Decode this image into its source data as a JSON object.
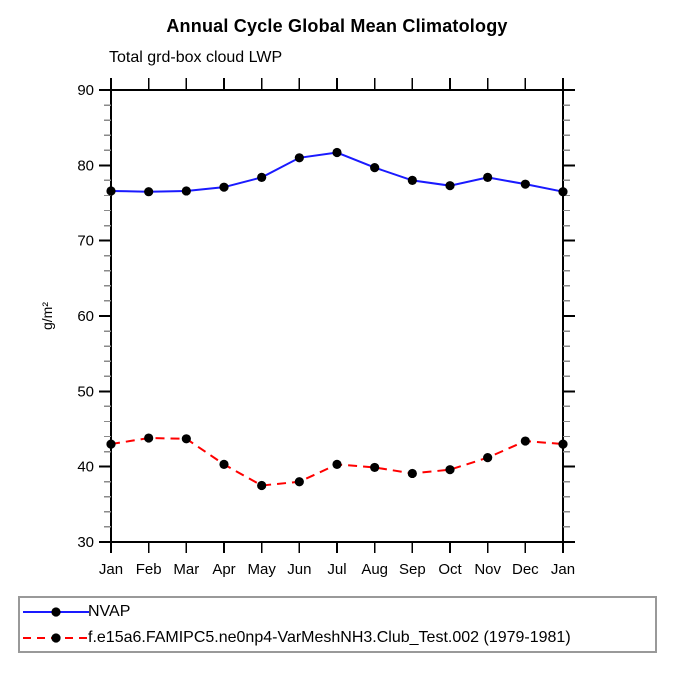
{
  "title": "Annual Cycle Global Mean Climatology",
  "subtitle": "Total grd-box cloud LWP",
  "ylabel": "g/m²",
  "chart_data": {
    "type": "line",
    "categories": [
      "Jan",
      "Feb",
      "Mar",
      "Apr",
      "May",
      "Jun",
      "Jul",
      "Aug",
      "Sep",
      "Oct",
      "Nov",
      "Dec",
      "Jan"
    ],
    "series": [
      {
        "name": "NVAP",
        "color": "#1a1aff",
        "style": "solid",
        "marker": "circle",
        "values": [
          76.6,
          76.5,
          76.6,
          77.1,
          78.4,
          81.0,
          81.7,
          79.7,
          78.0,
          77.3,
          78.4,
          77.5,
          76.5
        ]
      },
      {
        "name": "f.e15a6.FAMIPC5.ne0np4-VarMeshNH3.Club_Test.002 (1979-1981)",
        "color": "#ff0000",
        "style": "dashed",
        "marker": "circle",
        "values": [
          43.0,
          43.8,
          43.7,
          40.3,
          37.5,
          38.0,
          40.3,
          39.9,
          39.1,
          39.6,
          41.2,
          43.4,
          43.0
        ]
      }
    ],
    "title": "Annual Cycle Global Mean Climatology",
    "xlabel": "",
    "ylabel": "g/m²",
    "ylim": [
      30,
      90
    ],
    "ytick_major": [
      30,
      40,
      50,
      60,
      70,
      80,
      90
    ],
    "ytick_minor_step": 2,
    "grid": false,
    "legend_position": "bottom-left"
  }
}
